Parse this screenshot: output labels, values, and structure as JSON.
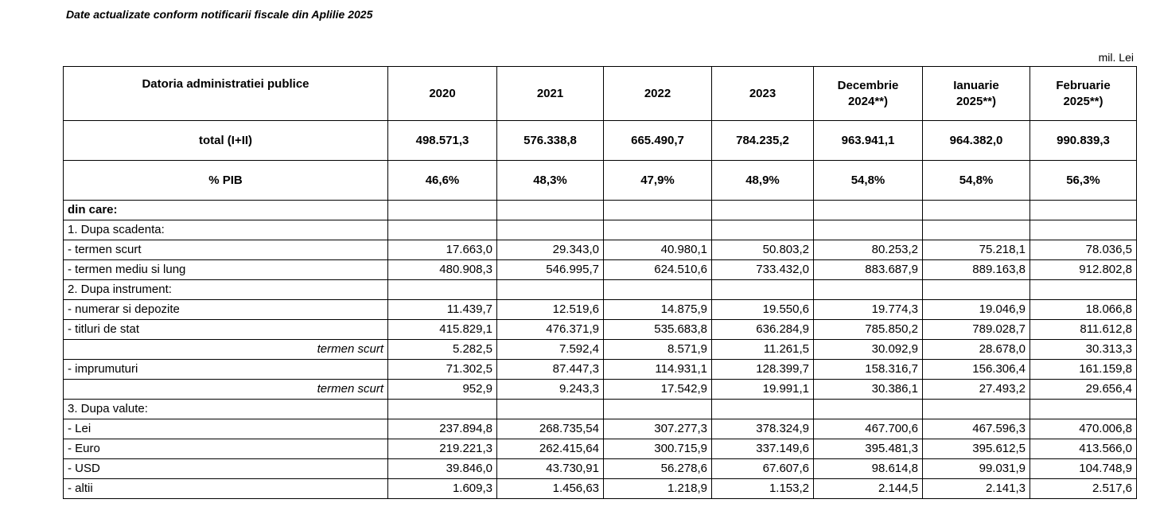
{
  "note": "Date actualizate conform notificarii fiscale din Aplilie 2025",
  "unit": "mil. Lei",
  "header": {
    "title": "Datoria administratiei publice",
    "columns": [
      "2020",
      "2021",
      "2022",
      "2023",
      "Decembrie 2024**)",
      "Ianuarie 2025**)",
      "Februarie 2025**)"
    ]
  },
  "total": {
    "label": "total (I+II)",
    "values": [
      "498.571,3",
      "576.338,8",
      "665.490,7",
      "784.235,2",
      "963.941,1",
      "964.382,0",
      "990.839,3"
    ]
  },
  "pib": {
    "label": "% PIB",
    "values": [
      "46,6%",
      "48,3%",
      "47,9%",
      "48,9%",
      "54,8%",
      "54,8%",
      "56,3%"
    ]
  },
  "rows": [
    {
      "label": "din care:",
      "values": [
        "",
        "",
        "",
        "",
        "",
        "",
        ""
      ]
    },
    {
      "label": "1. Dupa scadenta:",
      "values": [
        "",
        "",
        "",
        "",
        "",
        "",
        ""
      ]
    },
    {
      "label": " - termen scurt",
      "values": [
        "17.663,0",
        "29.343,0",
        "40.980,1",
        "50.803,2",
        "80.253,2",
        "75.218,1",
        "78.036,5"
      ]
    },
    {
      "label": " - termen mediu si lung",
      "values": [
        "480.908,3",
        "546.995,7",
        "624.510,6",
        "733.432,0",
        "883.687,9",
        "889.163,8",
        "912.802,8"
      ]
    },
    {
      "label": "2. Dupa instrument:",
      "values": [
        "",
        "",
        "",
        "",
        "",
        "",
        ""
      ]
    },
    {
      "label": " - numerar si depozite",
      "values": [
        "11.439,7",
        "12.519,6",
        "14.875,9",
        "19.550,6",
        "19.774,3",
        "19.046,9",
        "18.066,8"
      ]
    },
    {
      "label": " - titluri de stat",
      "values": [
        "415.829,1",
        "476.371,9",
        "535.683,8",
        "636.284,9",
        "785.850,2",
        "789.028,7",
        "811.612,8"
      ]
    },
    {
      "label": "termen scurt",
      "values": [
        "5.282,5",
        "7.592,4",
        "8.571,9",
        "11.261,5",
        "30.092,9",
        "28.678,0",
        "30.313,3"
      ]
    },
    {
      "label": " - imprumuturi",
      "values": [
        "71.302,5",
        "87.447,3",
        "114.931,1",
        "128.399,7",
        "158.316,7",
        "156.306,4",
        "161.159,8"
      ]
    },
    {
      "label": "termen scurt",
      "values": [
        "952,9",
        "9.243,3",
        "17.542,9",
        "19.991,1",
        "30.386,1",
        "27.493,2",
        "29.656,4"
      ]
    },
    {
      "label": "3. Dupa valute:",
      "values": [
        "",
        "",
        "",
        "",
        "",
        "",
        ""
      ]
    },
    {
      "label": " - Lei",
      "values": [
        "237.894,8",
        "268.735,54",
        "307.277,3",
        "378.324,9",
        "467.700,6",
        "467.596,3",
        "470.006,8"
      ]
    },
    {
      "label": " - Euro",
      "values": [
        "219.221,3",
        "262.415,64",
        "300.715,9",
        "337.149,6",
        "395.481,3",
        "395.612,5",
        "413.566,0"
      ]
    },
    {
      "label": " - USD",
      "values": [
        "39.846,0",
        "43.730,91",
        "56.278,6",
        "67.607,6",
        "98.614,8",
        "99.031,9",
        "104.748,9"
      ]
    },
    {
      "label": " - altii",
      "values": [
        "1.609,3",
        "1.456,63",
        "1.218,9",
        "1.153,2",
        "2.144,5",
        "2.141,3",
        "2.517,6"
      ]
    }
  ]
}
